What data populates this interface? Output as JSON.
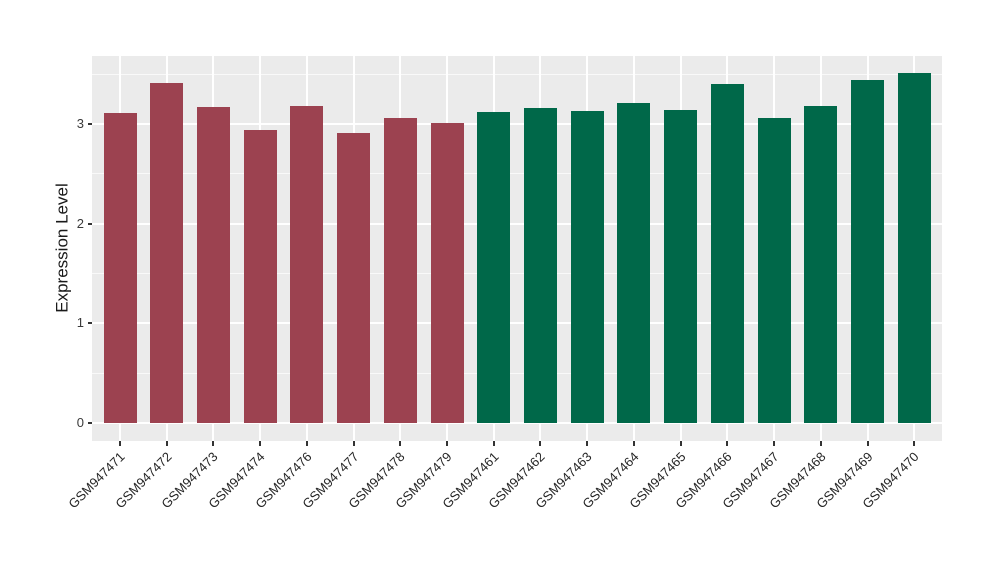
{
  "chart_data": {
    "type": "bar",
    "title": "",
    "xlabel": "",
    "ylabel": "Expression Level",
    "ylim": [
      -0.18,
      3.68
    ],
    "yticks": [
      0,
      1,
      2,
      3
    ],
    "minor_gridlines": [
      0.5,
      1.5,
      2.5,
      3.5
    ],
    "grid": true,
    "legend": "none",
    "x_tick_rotation": 45,
    "categories": [
      "GSM947471",
      "GSM947472",
      "GSM947473",
      "GSM947474",
      "GSM947476",
      "GSM947477",
      "GSM947478",
      "GSM947479",
      "GSM947461",
      "GSM947462",
      "GSM947463",
      "GSM947464",
      "GSM947465",
      "GSM947466",
      "GSM947467",
      "GSM947468",
      "GSM947469",
      "GSM947470"
    ],
    "values": [
      3.11,
      3.41,
      3.17,
      2.94,
      3.18,
      2.91,
      3.06,
      3.01,
      3.12,
      3.16,
      3.13,
      3.21,
      3.14,
      3.4,
      3.06,
      3.18,
      3.44,
      3.51
    ],
    "bar_colors": [
      "#9C4250",
      "#9C4250",
      "#9C4250",
      "#9C4250",
      "#9C4250",
      "#9C4250",
      "#9C4250",
      "#9C4250",
      "#006849",
      "#006849",
      "#006849",
      "#006849",
      "#006849",
      "#006849",
      "#006849",
      "#006849",
      "#006849",
      "#006849"
    ],
    "colors": {
      "group_left": "#9C4250",
      "group_right": "#006849",
      "panel_background": "#EBEBEB",
      "figure_background": "#FFFFFF",
      "gridline": "#FFFFFF",
      "tick": "#333333",
      "axis_text": "#3a3a3a"
    }
  }
}
